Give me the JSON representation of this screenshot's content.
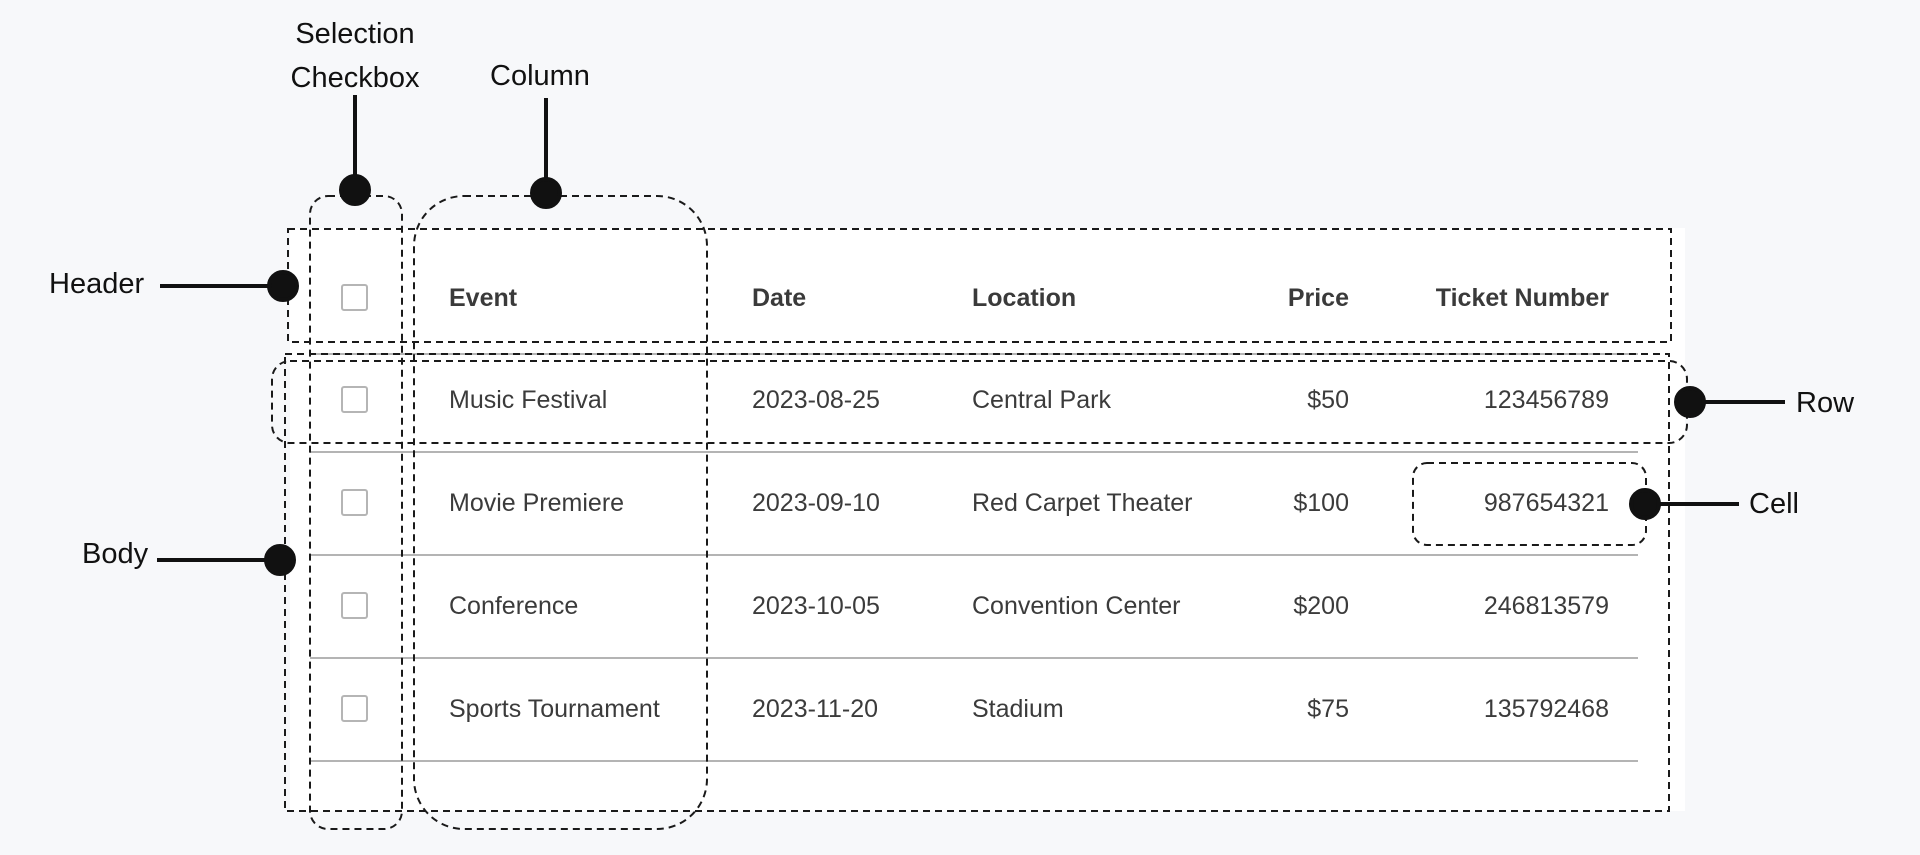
{
  "annotations": {
    "selection_checkbox": "Selection Checkbox",
    "column": "Column",
    "header": "Header",
    "body": "Body",
    "row": "Row",
    "cell": "Cell"
  },
  "table": {
    "columns": [
      "Event",
      "Date",
      "Location",
      "Price",
      "Ticket Number"
    ],
    "rows": [
      {
        "event": "Music Festival",
        "date": "2023-08-25",
        "location": "Central Park",
        "price": "$50",
        "ticket": "123456789",
        "selected": false
      },
      {
        "event": "Movie Premiere",
        "date": "2023-09-10",
        "location": "Red Carpet Theater",
        "price": "$100",
        "ticket": "987654321",
        "selected": false
      },
      {
        "event": "Conference",
        "date": "2023-10-05",
        "location": "Convention Center",
        "price": "$200",
        "ticket": "246813579",
        "selected": false
      },
      {
        "event": "Sports Tournament",
        "date": "2023-11-20",
        "location": "Stadium",
        "price": "$75",
        "ticket": "135792468",
        "selected": false
      }
    ],
    "header_selected": false
  }
}
